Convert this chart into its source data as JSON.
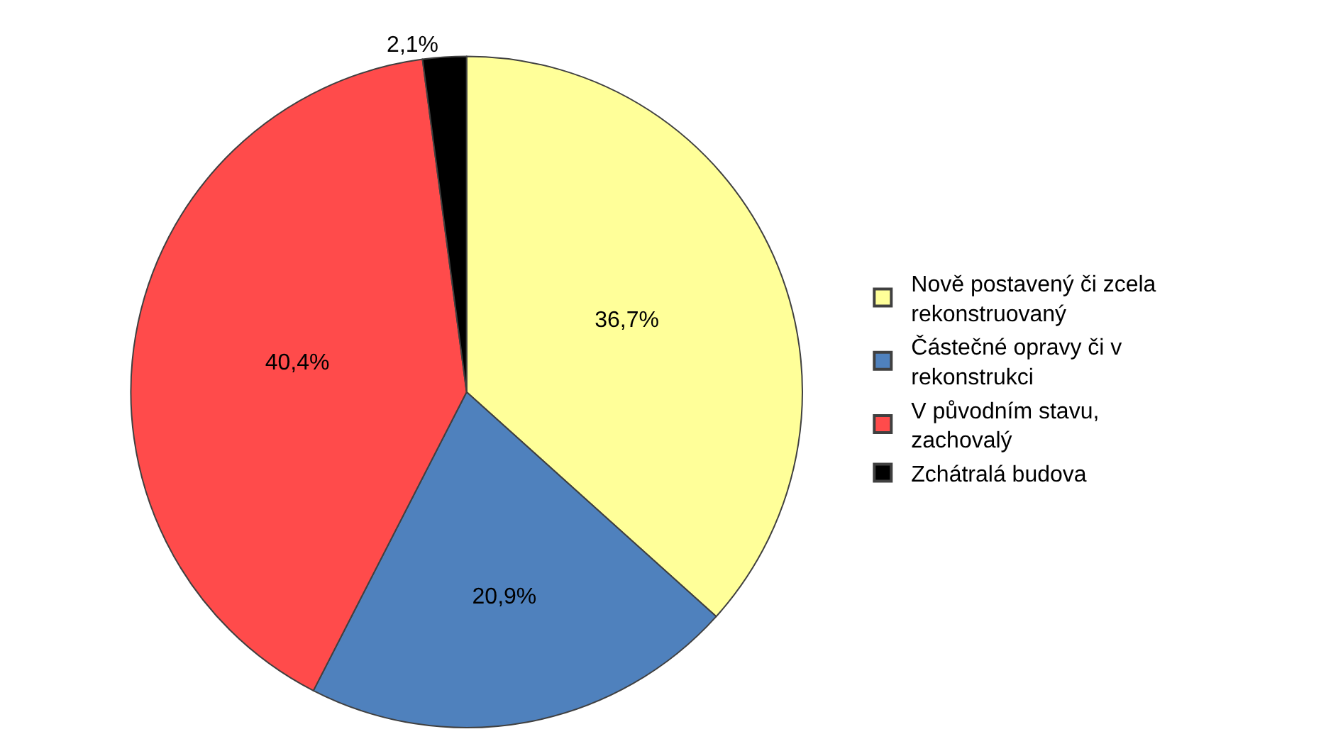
{
  "chart_data": {
    "type": "pie",
    "categories": [
      "Nově postavený či zcela rekonstruovaný",
      "Částečné opravy či v rekonstrukci",
      "V původním stavu, zachovalý",
      "Zchátralá budova"
    ],
    "values": [
      36.7,
      20.9,
      40.4,
      2.1
    ],
    "value_labels": [
      "36,7%",
      "20,9%",
      "40,4%",
      "2,1%"
    ],
    "colors": [
      "#ffff99",
      "#4f81bd",
      "#ff4b4b",
      "#000000"
    ],
    "legend": "right"
  }
}
